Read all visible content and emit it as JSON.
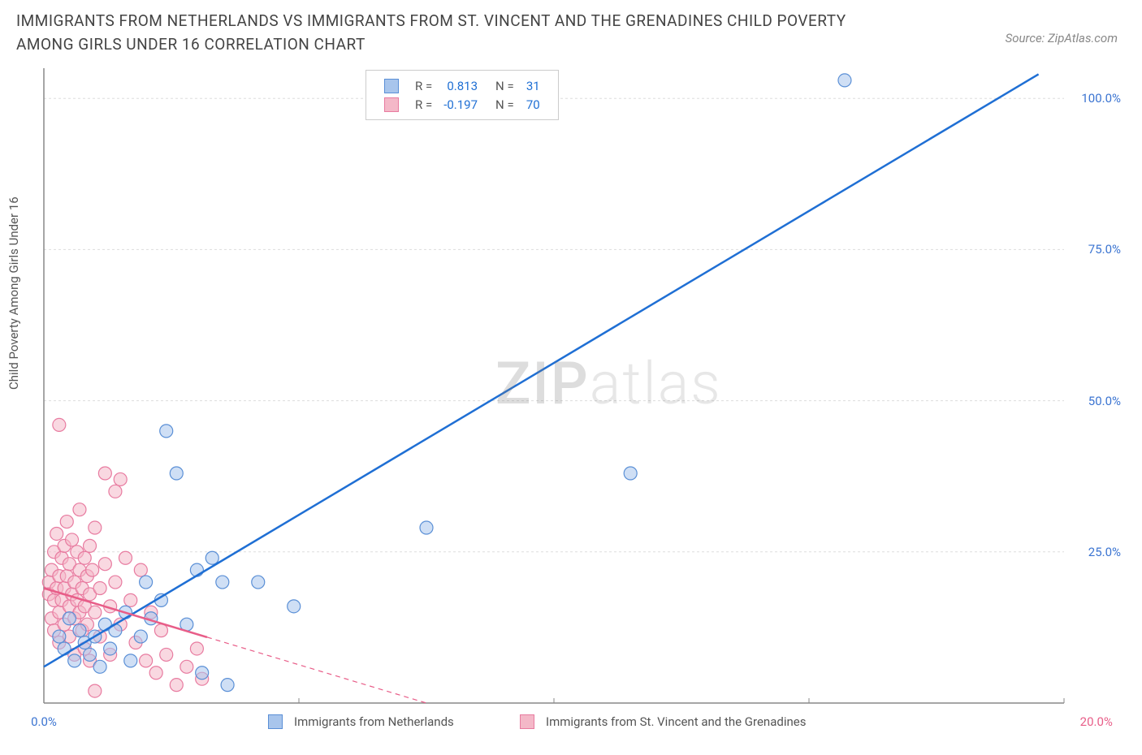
{
  "title": "IMMIGRANTS FROM NETHERLANDS VS IMMIGRANTS FROM ST. VINCENT AND THE GRENADINES CHILD POVERTY AMONG GIRLS UNDER 16 CORRELATION CHART",
  "source": "Source: ZipAtlas.com",
  "ylabel": "Child Poverty Among Girls Under 16",
  "watermark_a": "ZIP",
  "watermark_b": "atlas",
  "chart": {
    "type": "scatter",
    "background_color": "#ffffff",
    "grid_color": "#dddddd",
    "axis_color": "#888888",
    "xlim": [
      0,
      20
    ],
    "ylim": [
      0,
      105
    ],
    "x_ticks_major": [
      0,
      5,
      10,
      15,
      20
    ],
    "y_ticks_major": [
      25,
      50,
      75,
      100
    ],
    "y_tick_labels": [
      "25.0%",
      "50.0%",
      "75.0%",
      "100.0%"
    ],
    "x_tick_left_label": "0.0%",
    "x_tick_right_label": "20.0%",
    "marker_radius": 8,
    "marker_opacity": 0.55,
    "line_width_solid": 2.5,
    "line_width_dash": 1.2,
    "series": [
      {
        "name": "Immigrants from Netherlands",
        "color_fill": "#a8c5ec",
        "color_stroke": "#5a8fd6",
        "trend_color": "#1f6fd4",
        "R": "0.813",
        "N": "31",
        "trend": {
          "x1": 0,
          "y1": 6,
          "x2": 19.5,
          "y2": 104,
          "dash_after_x": null
        },
        "points": [
          [
            0.3,
            11
          ],
          [
            0.4,
            9
          ],
          [
            0.5,
            14
          ],
          [
            0.6,
            7
          ],
          [
            0.7,
            12
          ],
          [
            0.8,
            10
          ],
          [
            0.9,
            8
          ],
          [
            1.0,
            11
          ],
          [
            1.1,
            6
          ],
          [
            1.2,
            13
          ],
          [
            1.3,
            9
          ],
          [
            1.4,
            12
          ],
          [
            1.6,
            15
          ],
          [
            1.7,
            7
          ],
          [
            1.9,
            11
          ],
          [
            2.0,
            20
          ],
          [
            2.1,
            14
          ],
          [
            2.3,
            17
          ],
          [
            2.4,
            45
          ],
          [
            2.6,
            38
          ],
          [
            2.8,
            13
          ],
          [
            3.0,
            22
          ],
          [
            3.1,
            5
          ],
          [
            3.3,
            24
          ],
          [
            3.5,
            20
          ],
          [
            3.6,
            3
          ],
          [
            4.2,
            20
          ],
          [
            4.9,
            16
          ],
          [
            7.5,
            29
          ],
          [
            11.5,
            38
          ],
          [
            15.7,
            103
          ]
        ]
      },
      {
        "name": "Immigrants from St. Vincent and the Grenadines",
        "color_fill": "#f4b8c8",
        "color_stroke": "#e87ba0",
        "trend_color": "#e85d88",
        "R": "-0.197",
        "N": "70",
        "trend": {
          "x1": 0,
          "y1": 19,
          "x2": 7.5,
          "y2": 0,
          "dash_after_x": 3.2
        },
        "points": [
          [
            0.1,
            20
          ],
          [
            0.1,
            18
          ],
          [
            0.15,
            22
          ],
          [
            0.15,
            14
          ],
          [
            0.2,
            25
          ],
          [
            0.2,
            17
          ],
          [
            0.2,
            12
          ],
          [
            0.25,
            28
          ],
          [
            0.25,
            19
          ],
          [
            0.3,
            21
          ],
          [
            0.3,
            15
          ],
          [
            0.3,
            10
          ],
          [
            0.3,
            46
          ],
          [
            0.35,
            24
          ],
          [
            0.35,
            17
          ],
          [
            0.4,
            26
          ],
          [
            0.4,
            19
          ],
          [
            0.4,
            13
          ],
          [
            0.45,
            30
          ],
          [
            0.45,
            21
          ],
          [
            0.5,
            23
          ],
          [
            0.5,
            16
          ],
          [
            0.5,
            11
          ],
          [
            0.55,
            27
          ],
          [
            0.55,
            18
          ],
          [
            0.6,
            20
          ],
          [
            0.6,
            14
          ],
          [
            0.6,
            8
          ],
          [
            0.65,
            25
          ],
          [
            0.65,
            17
          ],
          [
            0.7,
            22
          ],
          [
            0.7,
            15
          ],
          [
            0.7,
            32
          ],
          [
            0.75,
            19
          ],
          [
            0.75,
            12
          ],
          [
            0.8,
            24
          ],
          [
            0.8,
            16
          ],
          [
            0.8,
            9
          ],
          [
            0.85,
            21
          ],
          [
            0.85,
            13
          ],
          [
            0.9,
            26
          ],
          [
            0.9,
            18
          ],
          [
            0.9,
            7
          ],
          [
            0.95,
            22
          ],
          [
            1.0,
            15
          ],
          [
            1.0,
            29
          ],
          [
            1.1,
            19
          ],
          [
            1.1,
            11
          ],
          [
            1.2,
            38
          ],
          [
            1.2,
            23
          ],
          [
            1.3,
            16
          ],
          [
            1.3,
            8
          ],
          [
            1.4,
            35
          ],
          [
            1.4,
            20
          ],
          [
            1.5,
            13
          ],
          [
            1.5,
            37
          ],
          [
            1.6,
            24
          ],
          [
            1.7,
            17
          ],
          [
            1.8,
            10
          ],
          [
            1.9,
            22
          ],
          [
            2.0,
            7
          ],
          [
            2.1,
            15
          ],
          [
            2.2,
            5
          ],
          [
            2.3,
            12
          ],
          [
            2.4,
            8
          ],
          [
            2.6,
            3
          ],
          [
            2.8,
            6
          ],
          [
            3.0,
            9
          ],
          [
            3.1,
            4
          ],
          [
            1.0,
            2
          ]
        ]
      }
    ]
  },
  "legend_top": {
    "rows": [
      {
        "swatch_fill": "#a8c5ec",
        "swatch_stroke": "#5a8fd6",
        "r_label": "R =",
        "r_val": "0.813",
        "n_label": "N =",
        "n_val": "31",
        "val_color": "#1f6fd4"
      },
      {
        "swatch_fill": "#f4b8c8",
        "swatch_stroke": "#e87ba0",
        "r_label": "R =",
        "r_val": "-0.197",
        "n_label": "N =",
        "n_val": "70",
        "val_color": "#1f6fd4"
      }
    ]
  },
  "legend_bottom": [
    {
      "swatch_fill": "#a8c5ec",
      "swatch_stroke": "#5a8fd6",
      "label": "Immigrants from Netherlands"
    },
    {
      "swatch_fill": "#f4b8c8",
      "swatch_stroke": "#e87ba0",
      "label": "Immigrants from St. Vincent and the Grenadines"
    }
  ]
}
